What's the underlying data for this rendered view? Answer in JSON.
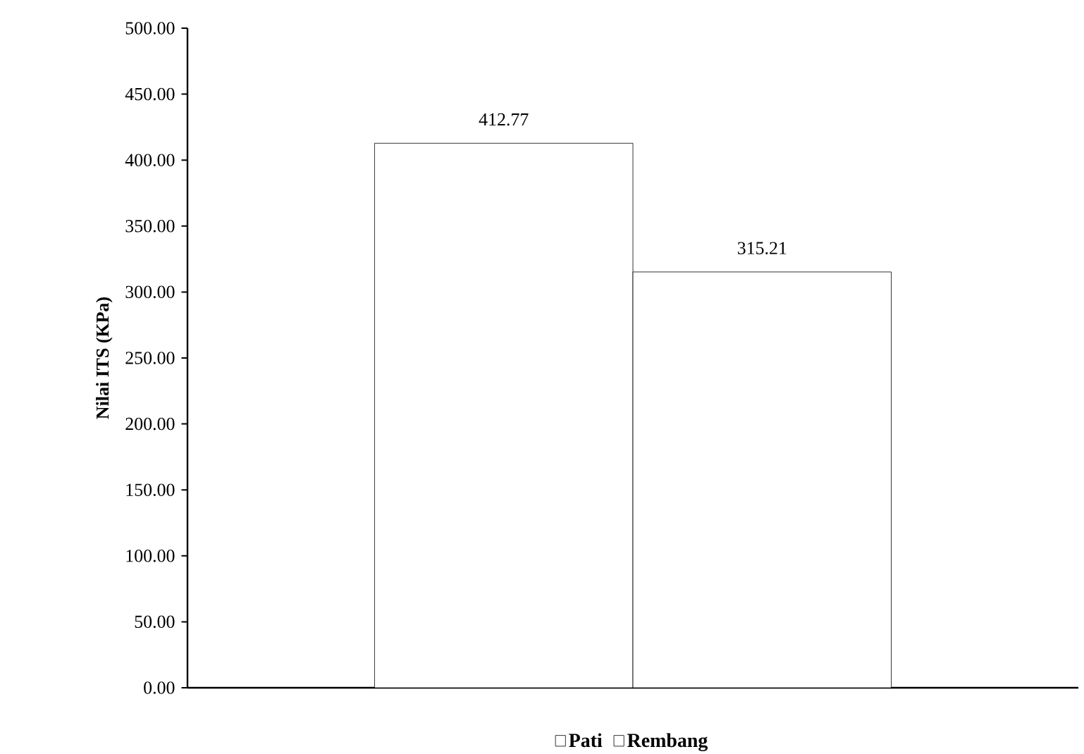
{
  "chart_data": {
    "type": "bar",
    "ylabel": "Nilai ITS (KPa)",
    "categories": [
      null
    ],
    "series": [
      {
        "name": "Pati",
        "color": "#000000",
        "values": [
          412.77
        ]
      },
      {
        "name": "Rembang",
        "color": "#000000",
        "values": [
          315.21
        ]
      }
    ],
    "ylim": [
      0,
      500
    ],
    "yticks": [
      {
        "value": 0,
        "label": "0.00"
      },
      {
        "value": 50,
        "label": "50.00"
      },
      {
        "value": 100,
        "label": "100.00"
      },
      {
        "value": 150,
        "label": "150.00"
      },
      {
        "value": 200,
        "label": "200.00"
      },
      {
        "value": 250,
        "label": "250.00"
      },
      {
        "value": 300,
        "label": "300.00"
      },
      {
        "value": 350,
        "label": "350.00"
      },
      {
        "value": 400,
        "label": "400.00"
      },
      {
        "value": 450,
        "label": "450.00"
      },
      {
        "value": 500,
        "label": "500.00"
      }
    ],
    "tick_labels": "y",
    "data_labels": true,
    "grid": false,
    "legend": "bottom"
  }
}
